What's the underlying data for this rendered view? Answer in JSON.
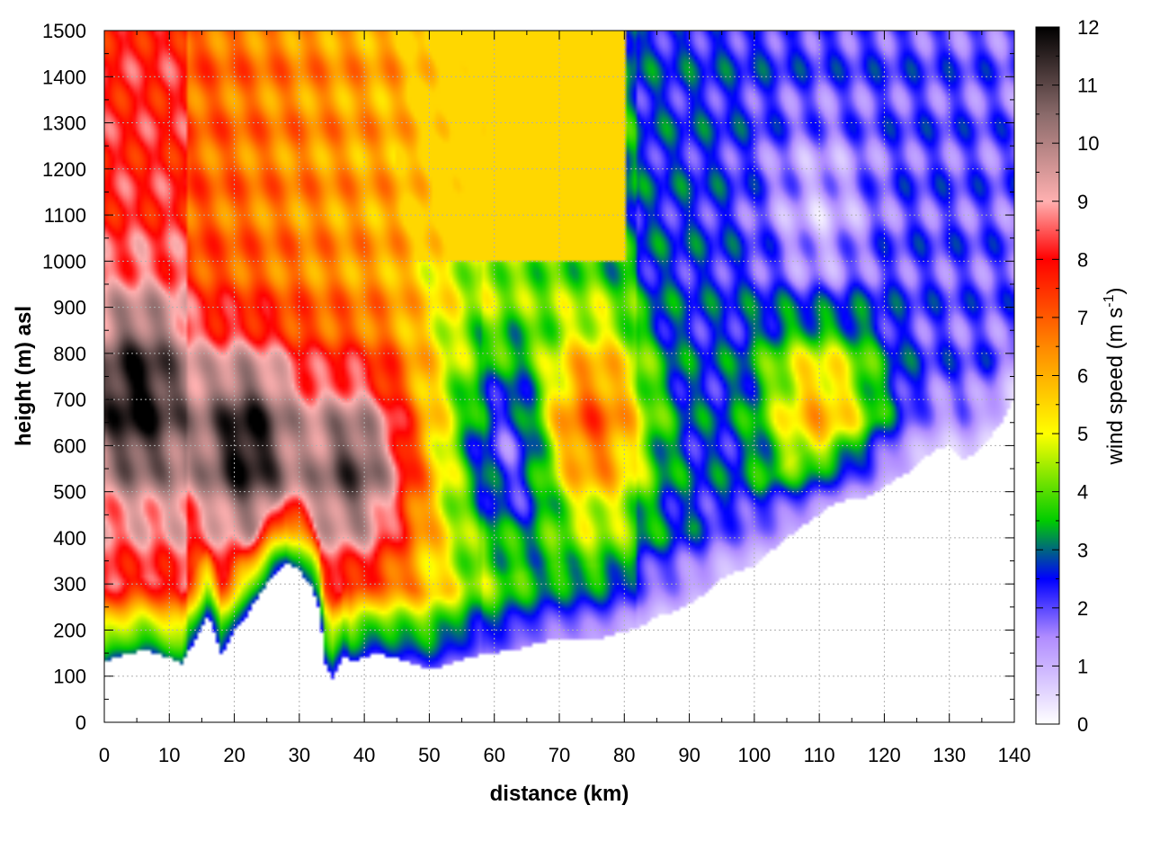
{
  "chart_data": {
    "type": "heatmap",
    "title": "",
    "xlabel": "distance (km)",
    "ylabel": "height (m) asl",
    "xlim": [
      0,
      140
    ],
    "ylim": [
      0,
      1500
    ],
    "x_ticks": [
      0,
      10,
      20,
      30,
      40,
      50,
      60,
      70,
      80,
      90,
      100,
      110,
      120,
      130,
      140
    ],
    "y_ticks": [
      0,
      100,
      200,
      300,
      400,
      500,
      600,
      700,
      800,
      900,
      1000,
      1100,
      1200,
      1300,
      1400,
      1500
    ],
    "grid": true,
    "colorbar": {
      "label_main": "wind speed (m s",
      "label_sup": "-1",
      "label_end": ")",
      "ticks": [
        0,
        1,
        2,
        3,
        4,
        5,
        6,
        7,
        8,
        9,
        10,
        11,
        12
      ],
      "range": [
        0,
        12
      ],
      "stops": [
        {
          "value": 0,
          "color": "#ffffff"
        },
        {
          "value": 1.5,
          "color": "#b08cff"
        },
        {
          "value": 2.5,
          "color": "#0000ff"
        },
        {
          "value": 3.5,
          "color": "#00cc00"
        },
        {
          "value": 5,
          "color": "#ffff00"
        },
        {
          "value": 6.5,
          "color": "#ff8800"
        },
        {
          "value": 8,
          "color": "#ff0000"
        },
        {
          "value": 9,
          "color": "#ffb0b0"
        },
        {
          "value": 10.5,
          "color": "#8a6a6a"
        },
        {
          "value": 12,
          "color": "#000000"
        }
      ]
    },
    "terrain_height_m": {
      "x": [
        0,
        2,
        4,
        6,
        8,
        10,
        12,
        14,
        16,
        17,
        18,
        19,
        20,
        22,
        24,
        26,
        28,
        30,
        32,
        33,
        34,
        35,
        36,
        37,
        38,
        40,
        42,
        44,
        46,
        48,
        50,
        52,
        54,
        56,
        58,
        60,
        62,
        64,
        66,
        68,
        70,
        72,
        74,
        76,
        78,
        80,
        82,
        84,
        86,
        88,
        90,
        92,
        94,
        96,
        98,
        100,
        102,
        104,
        106,
        108,
        110,
        112,
        114,
        116,
        118,
        120,
        122,
        124,
        126,
        128,
        130,
        132,
        134,
        136,
        138,
        140
      ],
      "y": [
        130,
        140,
        150,
        155,
        150,
        140,
        125,
        180,
        230,
        190,
        145,
        170,
        200,
        230,
        280,
        320,
        345,
        330,
        290,
        250,
        130,
        90,
        115,
        150,
        130,
        140,
        150,
        140,
        135,
        125,
        115,
        120,
        130,
        140,
        145,
        150,
        155,
        160,
        170,
        175,
        180,
        180,
        178,
        180,
        190,
        195,
        205,
        220,
        235,
        240,
        255,
        275,
        300,
        320,
        330,
        340,
        365,
        385,
        410,
        430,
        450,
        470,
        480,
        485,
        490,
        510,
        530,
        540,
        570,
        590,
        600,
        570,
        580,
        610,
        650,
        700
      ]
    },
    "wind_field_peaks_m_s": [
      {
        "x": 5,
        "y": 700,
        "value": 12
      },
      {
        "x": 22,
        "y": 600,
        "value": 12
      },
      {
        "x": 38,
        "y": 550,
        "value": 11
      },
      {
        "x": 65,
        "y": 600,
        "value": 1
      },
      {
        "x": 75,
        "y": 650,
        "value": 7
      },
      {
        "x": 110,
        "y": 700,
        "value": 6
      },
      {
        "x": 110,
        "y": 1100,
        "value": 1
      }
    ]
  }
}
